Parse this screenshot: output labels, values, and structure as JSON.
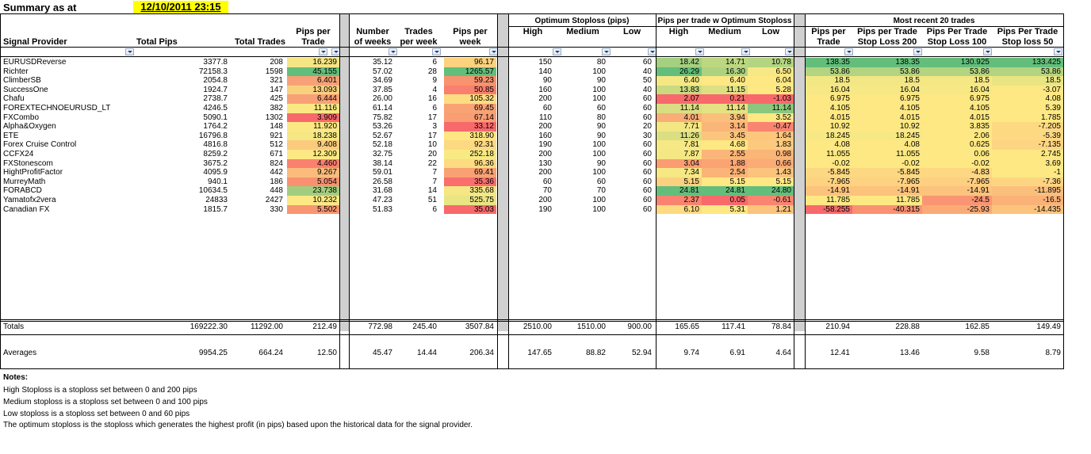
{
  "sheet": {
    "title": "Summary as at",
    "date": "12/10/2011 23:15"
  },
  "groups": {
    "optimum": "Optimum Stoploss (pips)",
    "pips_opt": "Pips per trade w Optimum Stoploss",
    "recent": "Most recent 20 trades"
  },
  "headers": {
    "provider": "Signal Provider",
    "total_pips": "Total Pips",
    "total_trades": "Total Trades",
    "ppt_1": "Pips per",
    "ppt_2": "Trade",
    "weeks_1": "Number",
    "weeks_2": "of weeks",
    "tpw_1": "Trades",
    "tpw_2": "per week",
    "ppw_1": "Pips per",
    "ppw_2": "week",
    "opt_high": "High",
    "opt_med": "Medium",
    "opt_low": "Low",
    "po_high": "High",
    "po_med": "Medium",
    "po_low": "Low",
    "r_ppt_1": "Pips per",
    "r_ppt_2": "Trade",
    "r_sl200_1": "Pips per Trade",
    "r_sl200_2": "Stop Loss 200",
    "r_sl100_1": "Pips Per Trade",
    "r_sl100_2": "Stop Loss 100",
    "r_sl50_1": "Pips Per Trade",
    "r_sl50_2": "Stop loss 50"
  },
  "rows": [
    [
      "EURUSDReverse",
      "3377.8",
      "208",
      "16.239",
      "35.12",
      "6",
      "96.17",
      "150",
      "80",
      "60",
      "18.42",
      "14.71",
      "10.78",
      "138.35",
      "138.35",
      "130.925",
      "133.425"
    ],
    [
      "Richter",
      "72158.3",
      "1598",
      "45.155",
      "57.02",
      "28",
      "1265.57",
      "140",
      "100",
      "40",
      "26.29",
      "16.30",
      "6.50",
      "53.86",
      "53.86",
      "53.86",
      "53.86"
    ],
    [
      "ClimberSB",
      "2054.8",
      "321",
      "6.401",
      "34.69",
      "9",
      "59.23",
      "90",
      "90",
      "50",
      "6.40",
      "6.40",
      "6.04",
      "18.5",
      "18.5",
      "18.5",
      "18.5"
    ],
    [
      "SuccessOne",
      "1924.7",
      "147",
      "13.093",
      "37.85",
      "4",
      "50.85",
      "160",
      "100",
      "40",
      "13.83",
      "11.15",
      "5.28",
      "16.04",
      "16.04",
      "16.04",
      "-3.07"
    ],
    [
      "Chafu",
      "2738.7",
      "425",
      "6.444",
      "26.00",
      "16",
      "105.32",
      "200",
      "100",
      "60",
      "2.07",
      "0.21",
      "-1.03",
      "6.975",
      "6.975",
      "6.975",
      "4.08"
    ],
    [
      "FOREXTECHNOEURUSD_LT",
      "4246.5",
      "382",
      "11.116",
      "61.14",
      "6",
      "69.45",
      "60",
      "60",
      "60",
      "11.14",
      "11.14",
      "11.14",
      "4.105",
      "4.105",
      "4.105",
      "5.39"
    ],
    [
      "FXCombo",
      "5090.1",
      "1302",
      "3.909",
      "75.82",
      "17",
      "67.14",
      "110",
      "80",
      "60",
      "4.01",
      "3.94",
      "3.52",
      "4.015",
      "4.015",
      "4.015",
      "1.785"
    ],
    [
      "Alpha&Oxygen",
      "1764.2",
      "148",
      "11.920",
      "53.26",
      "3",
      "33.12",
      "200",
      "90",
      "20",
      "7.71",
      "3.14",
      "-0.47",
      "10.92",
      "10.92",
      "3.835",
      "-7.205"
    ],
    [
      "ETE",
      "16796.8",
      "921",
      "18.238",
      "52.67",
      "17",
      "318.90",
      "160",
      "90",
      "30",
      "11.26",
      "3.45",
      "1.64",
      "18.245",
      "18.245",
      "2.06",
      "-5.39"
    ],
    [
      "Forex Cruise Control",
      "4816.8",
      "512",
      "9.408",
      "52.18",
      "10",
      "92.31",
      "190",
      "100",
      "60",
      "7.81",
      "4.68",
      "1.83",
      "4.08",
      "4.08",
      "0.625",
      "-7.135"
    ],
    [
      "CCFX24",
      "8259.2",
      "671",
      "12.309",
      "32.75",
      "20",
      "252.18",
      "200",
      "100",
      "60",
      "7.87",
      "2.55",
      "0.98",
      "11.055",
      "11.055",
      "0.06",
      "2.745"
    ],
    [
      "FXStonescom",
      "3675.2",
      "824",
      "4.460",
      "38.14",
      "22",
      "96.36",
      "130",
      "90",
      "60",
      "3.04",
      "1.88",
      "0.66",
      "-0.02",
      "-0.02",
      "-0.02",
      "3.69"
    ],
    [
      "HightProfitFactor",
      "4095.9",
      "442",
      "9.267",
      "59.01",
      "7",
      "69.41",
      "200",
      "100",
      "60",
      "7.34",
      "2.54",
      "1.43",
      "-5.845",
      "-5.845",
      "-4.83",
      "-1"
    ],
    [
      "MurreyMath",
      "940.1",
      "186",
      "5.054",
      "26.58",
      "7",
      "35.36",
      "60",
      "60",
      "60",
      "5.15",
      "5.15",
      "5.15",
      "-7.965",
      "-7.965",
      "-7.965",
      "-7.36"
    ],
    [
      "FORABCD",
      "10634.5",
      "448",
      "23.738",
      "31.68",
      "14",
      "335.68",
      "70",
      "70",
      "60",
      "24.81",
      "24.81",
      "24.80",
      "-14.91",
      "-14.91",
      "-14.91",
      "-11.895"
    ],
    [
      "Yamatofx2vera",
      "24833",
      "2427",
      "10.232",
      "47.23",
      "51",
      "525.75",
      "200",
      "100",
      "60",
      "2.37",
      "0.05",
      "-0.61",
      "11.785",
      "11.785",
      "-24.5",
      "-16.5"
    ],
    [
      "Canadian FX",
      "1815.7",
      "330",
      "5.502",
      "51.83",
      "6",
      "35.03",
      "190",
      "100",
      "60",
      "6.10",
      "5.31",
      "1.21",
      "-58.255",
      "-40.315",
      "-25.93",
      "-14.435"
    ]
  ],
  "cell_colors": {
    "ppt": [
      "#f6e584",
      "#63be7b",
      "#f8a176",
      "#f9d07e",
      "#f8a176",
      "#fae983",
      "#f8696b",
      "#fce883",
      "#f5e783",
      "#fbcb7d",
      "#fde883",
      "#f9816e",
      "#fbbc7b",
      "#f99171",
      "#a2cd7e",
      "#fde883",
      "#f89671"
    ],
    "ppw": [
      "#fcd27f",
      "#63be7b",
      "#f9936f",
      "#f9806e",
      "#fddd81",
      "#f9a274",
      "#f99d73",
      "#f8696b",
      "#fee683",
      "#fdd982",
      "#f9e983",
      "#fddb81",
      "#f9a174",
      "#f86f6d",
      "#f4e784",
      "#eae583",
      "#f8696b"
    ],
    "po_high": [
      "#a4d07f",
      "#63be7b",
      "#f5e884",
      "#c9da81",
      "#f8696b",
      "#d9de82",
      "#f9ad77",
      "#f3e784",
      "#dbde82",
      "#f6e884",
      "#f5e884",
      "#fa9d73",
      "#f6e884",
      "#fbd17f",
      "#63be7b",
      "#f9836f",
      "#fcdb81"
    ],
    "po_med": [
      "#bcd780",
      "#aed380",
      "#fde883",
      "#dde082",
      "#f8696b",
      "#e5e283",
      "#fac07b",
      "#fab578",
      "#fbc57d",
      "#fde883",
      "#fbb578",
      "#faa474",
      "#fbb477",
      "#fde883",
      "#63be7b",
      "#f8696b",
      "#fde883"
    ],
    "po_low": [
      "#b3d480",
      "#f6e884",
      "#fde883",
      "#fde883",
      "#f8696b",
      "#8bc77d",
      "#fde883",
      "#f98570",
      "#fcc77d",
      "#fcca7e",
      "#fab577",
      "#faab76",
      "#fbc37c",
      "#fde883",
      "#63be7b",
      "#f98570",
      "#fbc37c"
    ],
    "recent": [
      [
        "#63be7b",
        "#63be7b",
        "#63be7b",
        "#63be7b"
      ],
      [
        "#b3d480",
        "#b3d480",
        "#b3d480",
        "#b3d480"
      ],
      [
        "#f3e784",
        "#f2e784",
        "#f5e784",
        "#e9e582"
      ],
      [
        "#f6e884",
        "#f6e884",
        "#f6e884",
        "#fde883"
      ],
      [
        "#fde883",
        "#fde883",
        "#fde883",
        "#fde883"
      ],
      [
        "#fde883",
        "#fde883",
        "#fde883",
        "#fde883"
      ],
      [
        "#fde883",
        "#fde883",
        "#fde883",
        "#fde883"
      ],
      [
        "#fde883",
        "#fde883",
        "#fde883",
        "#fdd982"
      ],
      [
        "#f6e884",
        "#f6e884",
        "#fde883",
        "#fdd982"
      ],
      [
        "#fde883",
        "#fde883",
        "#fde883",
        "#fdd582"
      ],
      [
        "#fde883",
        "#fde883",
        "#fde883",
        "#fde883"
      ],
      [
        "#fde883",
        "#fde883",
        "#fde883",
        "#fde883"
      ],
      [
        "#fdd882",
        "#fdd882",
        "#fdd782",
        "#fde883"
      ],
      [
        "#fdd281",
        "#fdd281",
        "#fdcf80",
        "#fdd582"
      ],
      [
        "#fcc37c",
        "#fcc37c",
        "#fbc37c",
        "#fbbf7c"
      ],
      [
        "#fde883",
        "#fde883",
        "#fa9573",
        "#fbb277"
      ],
      [
        "#f8696b",
        "#fa9171",
        "#fbaa76",
        "#fcc37c"
      ]
    ]
  },
  "totals": [
    "Totals",
    "169222.30",
    "11292.00",
    "212.49",
    "772.98",
    "245.40",
    "3507.84",
    "2510.00",
    "1510.00",
    "900.00",
    "165.65",
    "117.41",
    "78.84",
    "210.94",
    "228.88",
    "162.85",
    "149.49"
  ],
  "averages": [
    "Averages",
    "9954.25",
    "664.24",
    "12.50",
    "45.47",
    "14.44",
    "206.34",
    "147.65",
    "88.82",
    "52.94",
    "9.74",
    "6.91",
    "4.64",
    "12.41",
    "13.46",
    "9.58",
    "8.79"
  ],
  "notes": {
    "heading": "Notes:",
    "line1": "High Stoploss is a stoploss set between 0 and 200 pips",
    "line2": "Medium stoploss is a stoploss set between 0 and 100 pips",
    "line3": "Low stoploss is a stoploss set between 0 and 60 pips",
    "line4": "The optimum stoploss is the stoploss which generates the highest profit (in pips) based upon the historical data for the signal provider."
  },
  "accent_colors": {
    "date_highlight": "#ffff00",
    "separator": "#d0d0d0"
  }
}
